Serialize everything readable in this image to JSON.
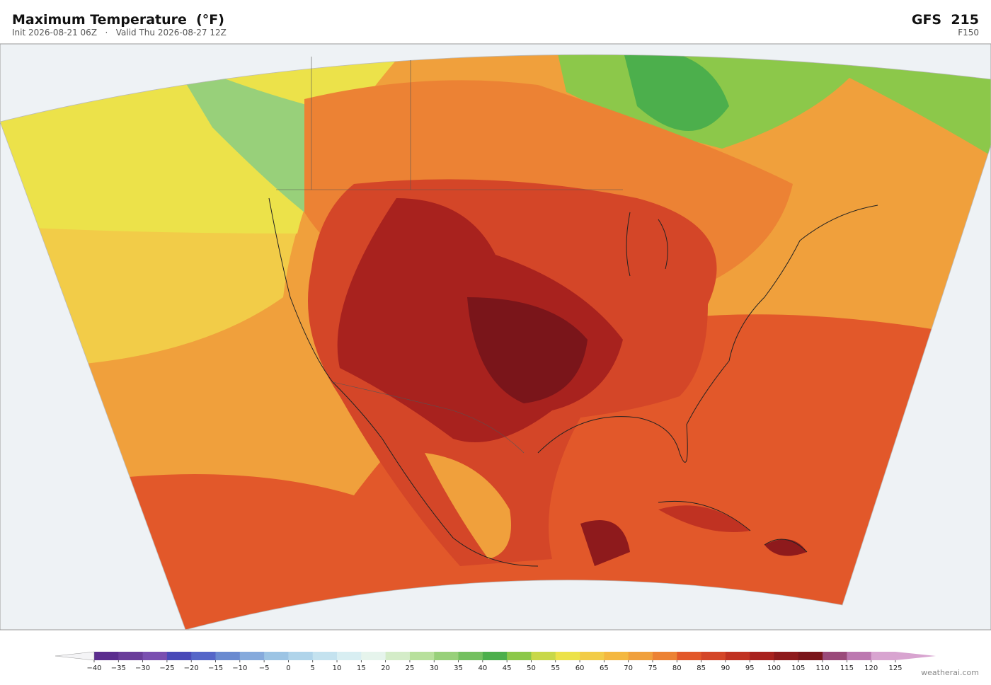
{
  "header": {
    "title": "Maximum Temperature  (°F)",
    "subtitle": "Init 2026-08-21 06Z   ·   Valid Thu 2026-08-27 12Z",
    "model": "GFS  215",
    "forecast": "F150"
  },
  "colorbar": {
    "ticks": [
      {
        "value": -40,
        "label": "−40"
      },
      {
        "value": -35,
        "label": "−35"
      },
      {
        "value": -30,
        "label": "−30"
      },
      {
        "value": -25,
        "label": "−25"
      },
      {
        "value": -20,
        "label": "−20"
      },
      {
        "value": -15,
        "label": "−15"
      },
      {
        "value": -10,
        "label": "−10"
      },
      {
        "value": -5,
        "label": "−5"
      },
      0,
      5,
      10,
      15,
      20,
      25,
      30,
      35,
      40,
      45,
      50,
      55,
      60,
      65,
      70,
      75,
      80,
      85,
      90,
      95,
      100,
      105,
      110,
      115,
      120,
      125
    ],
    "colors": [
      "#5b2d8e",
      "#6a3d9a",
      "#7a4fb0",
      "#4a4ab8",
      "#5566c8",
      "#6a8ad0",
      "#86aadc",
      "#9cc4e4",
      "#b0d4ea",
      "#c4e2ef",
      "#d8eef2",
      "#e6f4ec",
      "#d4ecc8",
      "#b8e09c",
      "#98d07a",
      "#74c060",
      "#4caf4c",
      "#8cc84a",
      "#c8d84a",
      "#ece24a",
      "#f2cc48",
      "#f4b840",
      "#f0a03c",
      "#ec8234",
      "#e2582a",
      "#d44628",
      "#c03222",
      "#a8221e",
      "#8e1a1c",
      "#7a151a",
      "#9a4a7a",
      "#bc78b0",
      "#d8a4d0"
    ],
    "extend_colors": [
      "#f4f4f6",
      "#d8a4d0"
    ]
  },
  "credit": "weatherai.com"
}
